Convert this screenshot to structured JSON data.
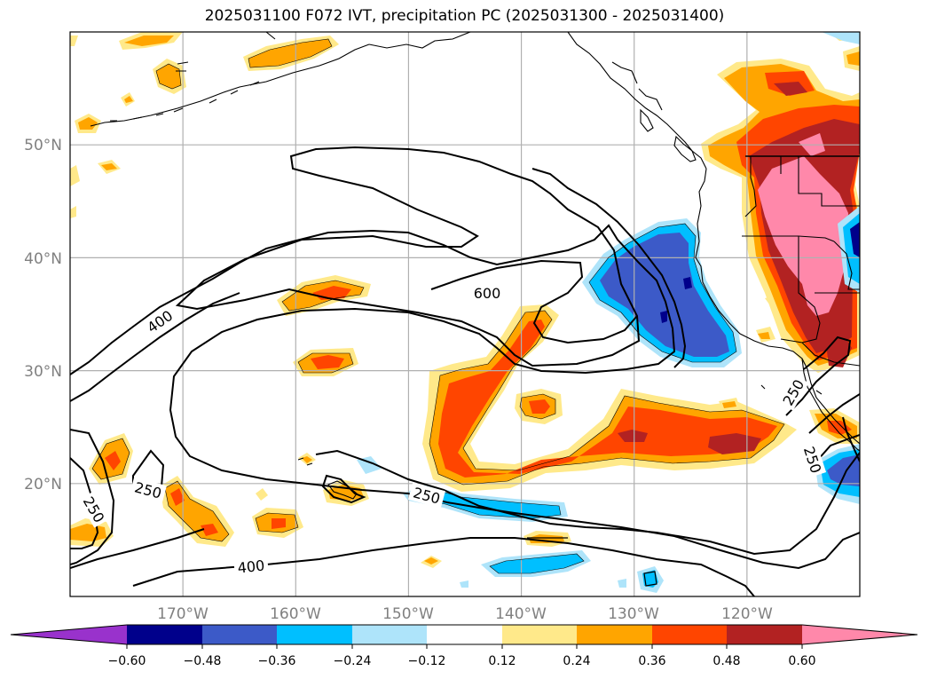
{
  "title": "2025031100 F072 IVT, precipitation PC (2025031300 - 2025031400)",
  "map": {
    "lon_range": [
      180,
      110
    ],
    "lat_range": [
      10,
      60
    ],
    "lon_ticks": [
      "170°W",
      "160°W",
      "150°W",
      "140°W",
      "130°W",
      "120°W"
    ],
    "lat_ticks": [
      "20°N",
      "30°N",
      "40°N",
      "50°N"
    ],
    "grid": true
  },
  "contours": {
    "field": "IVT",
    "line_color": "#000000",
    "labels": [
      "400",
      "600",
      "250",
      "250",
      "250",
      "400",
      "250",
      "250"
    ]
  },
  "colorbar": {
    "orientation": "horizontal",
    "extend": "both",
    "bins": [
      {
        "color": "#9932cc"
      },
      {
        "color": "#00008b"
      },
      {
        "color": "#3c5ac8"
      },
      {
        "color": "#00bfff"
      },
      {
        "color": "#aee4fa"
      },
      {
        "color": "#ffffff"
      },
      {
        "color": "#ffe98a"
      },
      {
        "color": "#ffa500"
      },
      {
        "color": "#ff4500"
      },
      {
        "color": "#b22222"
      },
      {
        "color": "#ff88aa"
      }
    ],
    "tick_labels": [
      "−0.60",
      "−0.48",
      "−0.36",
      "−0.24",
      "−0.12",
      "0.12",
      "0.24",
      "0.36",
      "0.48",
      "0.60"
    ]
  },
  "colors": {
    "light_yellow": "#ffe98a",
    "orange": "#ffa500",
    "red_orange": "#ff4500",
    "dark_red": "#b22222",
    "pink": "#ff88aa",
    "light_blue": "#aee4fa",
    "sky_blue": "#00bfff",
    "royal_blue": "#3c5ac8",
    "navy": "#00008b",
    "grid": "#b0b0b0",
    "coast": "#000000"
  }
}
